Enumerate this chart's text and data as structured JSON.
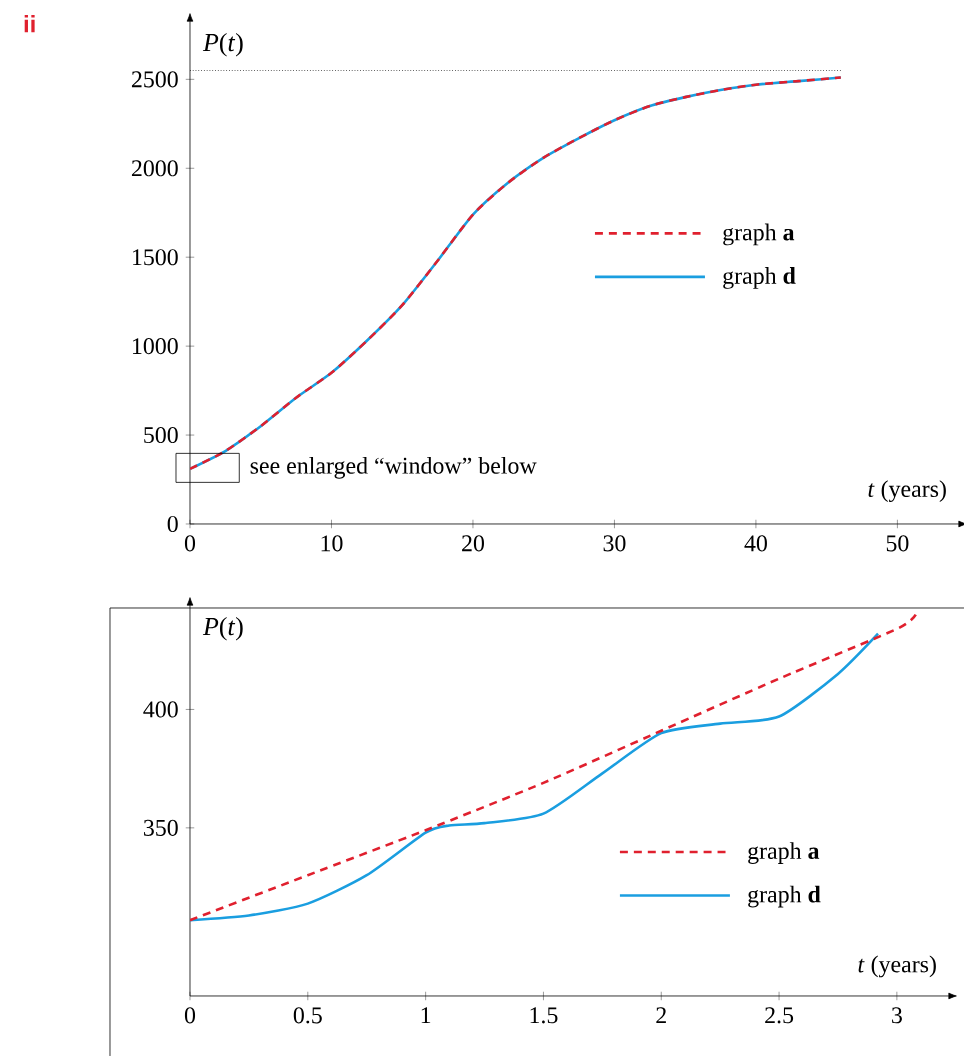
{
  "chart_data": [
    {
      "type": "line",
      "xlabel": "*t* (years)",
      "ylabel": "*P*(*t*)",
      "xlim": [
        0,
        54
      ],
      "ylim": [
        0,
        2800
      ],
      "xticks": [
        0,
        10,
        20,
        30,
        40,
        50
      ],
      "yticks": [
        0,
        500,
        1000,
        1500,
        2000,
        2500
      ],
      "legend": "right",
      "annotations": [
        "ii",
        "see enlarged “window” below"
      ],
      "ref_lines": [
        {
          "axis": "y",
          "value": 2550,
          "color": "#000000",
          "line_style": "dotted"
        }
      ],
      "series": [
        {
          "name": "graph **a**",
          "color": "#e0202e",
          "line_style": "dashed",
          "x": [
            0,
            2.5,
            5,
            7.5,
            10,
            12.5,
            15,
            17.5,
            20,
            22.5,
            25,
            27.5,
            30,
            32.5,
            35,
            37.5,
            40,
            43,
            46
          ],
          "values": [
            310,
            410,
            550,
            710,
            850,
            1030,
            1230,
            1480,
            1740,
            1920,
            2060,
            2170,
            2270,
            2350,
            2400,
            2440,
            2470,
            2490,
            2510
          ]
        },
        {
          "name": "graph **d**",
          "color": "#1a9ee0",
          "line_style": "solid",
          "x": [
            0,
            2.5,
            5,
            7.5,
            10,
            12.5,
            15,
            17.5,
            20,
            22.5,
            25,
            27.5,
            30,
            32.5,
            35,
            37.5,
            40,
            43,
            46
          ],
          "values": [
            310,
            410,
            550,
            710,
            850,
            1030,
            1230,
            1480,
            1740,
            1920,
            2060,
            2170,
            2270,
            2350,
            2400,
            2440,
            2470,
            2490,
            2510
          ]
        }
      ]
    },
    {
      "type": "line",
      "xlabel": "*t* (years)",
      "ylabel": "*P*(*t*)",
      "xlim": [
        0,
        3.2
      ],
      "ylim": [
        279,
        442
      ],
      "xticks": [
        0,
        0.5,
        1,
        1.5,
        2,
        2.5,
        3
      ],
      "yticks": [
        350,
        400
      ],
      "legend": "bottom right",
      "series": [
        {
          "name": "graph **a**",
          "color": "#e0202e",
          "line_style": "dashed",
          "x": [
            0,
            0.5,
            1,
            1.5,
            2,
            2.5,
            3,
            3.08
          ],
          "values": [
            311,
            330,
            349,
            369,
            391,
            413,
            434,
            440
          ]
        },
        {
          "name": "graph **d**",
          "color": "#1a9ee0",
          "line_style": "solid",
          "x": [
            0,
            0.25,
            0.5,
            0.75,
            1,
            1.1,
            1.25,
            1.5,
            1.75,
            2,
            2.25,
            2.5,
            2.75,
            2.92
          ],
          "values": [
            311,
            313,
            318,
            330,
            348,
            351,
            352,
            356,
            373,
            390,
            394,
            397,
            415,
            432
          ]
        }
      ]
    }
  ]
}
